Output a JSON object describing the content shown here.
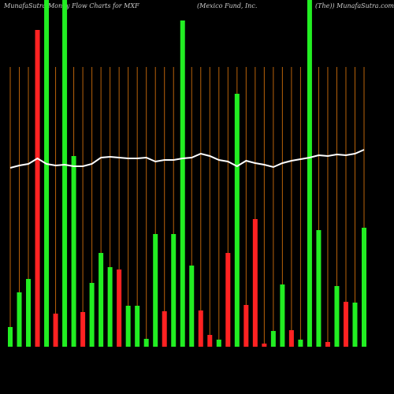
{
  "chart_data": {
    "type": "bar",
    "title_parts": [
      "MunafaSutra  Money Flow  Charts for MXF",
      "(Mexico  Fund,  Inc.",
      "(The)) MunafaSutra.com"
    ],
    "categories": [
      null,
      null,
      null,
      null,
      null,
      null,
      null,
      null,
      null,
      null,
      null,
      null,
      null,
      null,
      null,
      null,
      null,
      null,
      null,
      null,
      null,
      null,
      null,
      null,
      null,
      null,
      null,
      null,
      null,
      null,
      null,
      null,
      null,
      null,
      null,
      null,
      null,
      null,
      null,
      null
    ],
    "values": [
      25,
      69,
      86,
      402,
      440,
      42,
      440,
      242,
      44,
      81,
      119,
      101,
      98,
      52,
      52,
      10,
      143,
      45,
      143,
      414,
      103,
      46,
      15,
      9,
      119,
      321,
      53,
      162,
      4,
      20,
      79,
      21,
      9,
      440,
      148,
      6,
      77,
      57,
      56,
      151
    ],
    "colors": [
      "#22ee22",
      "#22ee22",
      "#22ee22",
      "#ff2222",
      "#22ee22",
      "#ff2222",
      "#22ee22",
      "#22ee22",
      "#ff2222",
      "#22ee22",
      "#22ee22",
      "#22ee22",
      "#ff2222",
      "#22ee22",
      "#22ee22",
      "#22ee22",
      "#22ee22",
      "#ff2222",
      "#22ee22",
      "#22ee22",
      "#22ee22",
      "#ff2222",
      "#ff2222",
      "#22ee22",
      "#ff2222",
      "#22ee22",
      "#ff2222",
      "#ff2222",
      "#ff2222",
      "#22ee22",
      "#22ee22",
      "#ff2222",
      "#22ee22",
      "#22ee22",
      "#22ee22",
      "#ff2222",
      "#22ee22",
      "#ff2222",
      "#22ee22",
      "#22ee22"
    ],
    "line_values": [
      227,
      230,
      232,
      239,
      232,
      230,
      231,
      229,
      229,
      232,
      240,
      241,
      240,
      239,
      239,
      240,
      235,
      237,
      237,
      239,
      240,
      245,
      242,
      237,
      235,
      229,
      236,
      233,
      231,
      228,
      233,
      236,
      238,
      240,
      243,
      242,
      244,
      243,
      245,
      250
    ],
    "line_color": "#ffffff",
    "ylim": [
      0,
      440
    ]
  }
}
